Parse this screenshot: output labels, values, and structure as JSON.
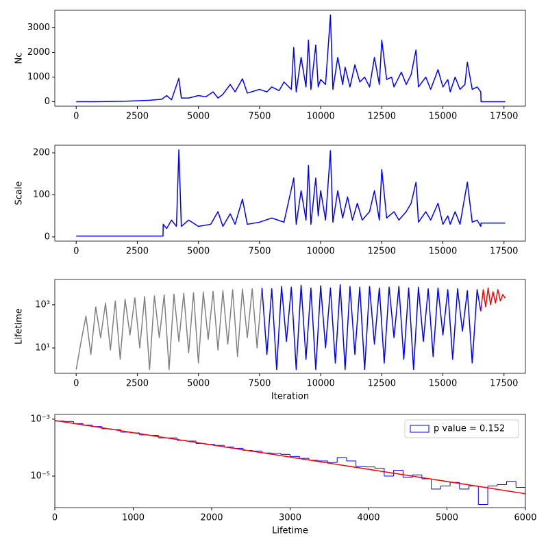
{
  "chart_data": [
    {
      "type": "line",
      "ylabel": "Nc",
      "xlim": [
        -875,
        18375
      ],
      "ylim": [
        -180,
        3710
      ],
      "xticks": [
        0,
        2500,
        5000,
        7500,
        10000,
        12500,
        15000,
        17500
      ],
      "yticks": [
        0,
        1000,
        2000,
        3000
      ],
      "series": [
        {
          "color": "#0000ff",
          "x": [
            0,
            1000,
            2000,
            2500,
            3000,
            3500,
            3700,
            3900,
            4200,
            4300,
            4600,
            5000,
            5300,
            5600,
            5800,
            6000,
            6300,
            6500,
            6800,
            7000,
            7500,
            7800,
            8000,
            8300,
            8500,
            8800,
            8900,
            9000,
            9200,
            9400,
            9500,
            9600,
            9800,
            9900,
            10000,
            10200,
            10400,
            10500,
            10700,
            10900,
            11000,
            11200,
            11400,
            11600,
            11800,
            12000,
            12200,
            12400,
            12500,
            12700,
            12900,
            13000,
            13300,
            13500,
            13700,
            13900,
            14000,
            14300,
            14500,
            14800,
            15000,
            15200,
            15300,
            15500,
            15700,
            15900,
            16000,
            16200,
            16400,
            16550,
            16560,
            17550
          ],
          "values": [
            0,
            5,
            20,
            40,
            60,
            100,
            250,
            80,
            950,
            150,
            150,
            250,
            200,
            400,
            150,
            300,
            700,
            400,
            930,
            350,
            500,
            400,
            600,
            450,
            800,
            500,
            2200,
            400,
            1800,
            600,
            2500,
            500,
            2300,
            600,
            900,
            700,
            3520,
            500,
            1800,
            700,
            1400,
            600,
            1500,
            800,
            1000,
            600,
            1800,
            700,
            2500,
            900,
            1000,
            600,
            1200,
            700,
            1100,
            2100,
            600,
            1000,
            500,
            1300,
            600,
            900,
            400,
            1000,
            500,
            700,
            1600,
            500,
            600,
            400,
            0,
            0
          ]
        }
      ]
    },
    {
      "type": "line",
      "ylabel": "Scale",
      "xlim": [
        -875,
        18375
      ],
      "ylim": [
        -10,
        218
      ],
      "xticks": [
        0,
        2500,
        5000,
        7500,
        10000,
        12500,
        15000,
        17500
      ],
      "yticks": [
        0,
        100,
        200
      ],
      "series": [
        {
          "color": "#0000ff",
          "x": [
            0,
            3550,
            3560,
            3700,
            3900,
            4100,
            4200,
            4300,
            4600,
            5000,
            5500,
            5800,
            6000,
            6300,
            6500,
            6800,
            7000,
            7500,
            8000,
            8500,
            8900,
            9000,
            9200,
            9400,
            9500,
            9600,
            9800,
            9900,
            10000,
            10200,
            10400,
            10500,
            10700,
            10900,
            11100,
            11300,
            11500,
            11700,
            12000,
            12200,
            12400,
            12500,
            12700,
            13000,
            13200,
            13500,
            13700,
            13900,
            14000,
            14300,
            14500,
            14800,
            15000,
            15200,
            15300,
            15500,
            15700,
            16000,
            16200,
            16400,
            16550,
            16560,
            17550
          ],
          "values": [
            2,
            2,
            30,
            20,
            40,
            25,
            207,
            25,
            40,
            25,
            30,
            60,
            25,
            55,
            30,
            90,
            30,
            35,
            45,
            35,
            140,
            30,
            110,
            40,
            170,
            30,
            140,
            50,
            110,
            40,
            205,
            35,
            110,
            45,
            95,
            40,
            80,
            40,
            60,
            110,
            40,
            160,
            45,
            60,
            40,
            60,
            80,
            130,
            35,
            60,
            40,
            80,
            30,
            50,
            30,
            60,
            30,
            130,
            35,
            40,
            25,
            33,
            33
          ]
        }
      ]
    },
    {
      "type": "line",
      "ylabel": "Lifetime",
      "xlabel": "Iteration",
      "log_y": true,
      "xlim": [
        -875,
        18375
      ],
      "ylim": [
        0.67,
        14800
      ],
      "xticks": [
        0,
        2500,
        5000,
        7500,
        10000,
        12500,
        15000,
        17500
      ],
      "yticks": [
        {
          "value": 10,
          "label": "10¹"
        },
        {
          "value": 1000,
          "label": "10³"
        }
      ],
      "series": [
        {
          "color": "#808080",
          "x": [
            0,
            200,
            400,
            600,
            800,
            1000,
            1200,
            1400,
            1600,
            1800,
            2000,
            2200,
            2400,
            2600,
            2800,
            3000,
            3200,
            3400,
            3600,
            3800,
            4000,
            4200,
            4400,
            4600,
            4800,
            5000,
            5200,
            5400,
            5600,
            5800,
            6000,
            6200,
            6400,
            6600,
            6800,
            7000,
            7200,
            7400,
            7600
          ],
          "values": [
            1,
            20,
            300,
            5,
            800,
            30,
            1200,
            8,
            1500,
            3,
            1800,
            40,
            2100,
            10,
            2400,
            1,
            2600,
            30,
            2900,
            1,
            3100,
            20,
            3400,
            6,
            3600,
            2,
            3900,
            25,
            4200,
            8,
            4500,
            15,
            4900,
            4,
            5300,
            30,
            5600,
            10,
            6000
          ]
        },
        {
          "color": "#0000ff",
          "x": [
            7600,
            7800,
            8000,
            8200,
            8400,
            8600,
            8800,
            9000,
            9200,
            9400,
            9600,
            9800,
            10000,
            10200,
            10400,
            10600,
            10800,
            11000,
            11200,
            11400,
            11600,
            11800,
            12000,
            12200,
            12400,
            12600,
            12800,
            13000,
            13200,
            13400,
            13600,
            13800,
            14000,
            14200,
            14400,
            14600,
            14800,
            15000,
            15200,
            15400,
            15600,
            15800,
            16000,
            16200,
            16400,
            16550
          ],
          "values": [
            6000,
            5,
            5500,
            1,
            7000,
            20,
            6500,
            1,
            8000,
            3,
            6000,
            1,
            7500,
            10,
            6000,
            2,
            8500,
            1,
            7000,
            5,
            6500,
            1,
            7000,
            15,
            6000,
            2,
            6500,
            30,
            7000,
            3,
            6000,
            1,
            6500,
            20,
            5500,
            4,
            6000,
            40,
            5000,
            3,
            5500,
            60,
            4500,
            2,
            5000,
            500
          ]
        },
        {
          "color": "#ff0000",
          "x": [
            16550,
            16650,
            16750,
            16850,
            16950,
            17050,
            17150,
            17250,
            17350,
            17450,
            17550
          ],
          "values": [
            500,
            5000,
            800,
            6000,
            1000,
            4000,
            1200,
            5000,
            1500,
            3000,
            2000
          ]
        }
      ]
    },
    {
      "type": "histogram",
      "xlabel": "Lifetime",
      "log_y": true,
      "xlim": [
        0,
        6000
      ],
      "ylim": [
        7.8e-07,
        0.00147
      ],
      "xticks": [
        0,
        1000,
        2000,
        3000,
        4000,
        5000,
        6000
      ],
      "yticks": [
        {
          "value": 0.001,
          "label": "10⁻³"
        },
        {
          "value": 1e-05,
          "label": "10⁻⁵"
        }
      ],
      "name": "p value = 0.152",
      "color": "#0000ff",
      "legend": "upper right",
      "bins": [
        0,
        120,
        240,
        360,
        480,
        600,
        720,
        840,
        960,
        1080,
        1200,
        1320,
        1440,
        1560,
        1680,
        1800,
        1920,
        2040,
        2160,
        2280,
        2400,
        2520,
        2640,
        2760,
        2880,
        3000,
        3120,
        3240,
        3360,
        3480,
        3600,
        3720,
        3840,
        3960,
        4080,
        4200,
        4320,
        4440,
        4560,
        4680,
        4800,
        4920,
        5040,
        5160,
        5280,
        5400,
        5520,
        5640,
        5760,
        5880,
        6000
      ],
      "values": [
        0.00086,
        0.00083,
        0.0007,
        0.00062,
        0.00055,
        0.00046,
        0.00043,
        0.00035,
        0.00033,
        0.00028,
        0.00027,
        0.00022,
        0.00022,
        0.00018,
        0.00017,
        0.00014,
        0.00013,
        0.00012,
        0.000105,
        9.5e-05,
        8e-05,
        7.6e-05,
        6.5e-05,
        6.3e-05,
        5.8e-05,
        4.9e-05,
        4.2e-05,
        3.6e-05,
        3.4e-05,
        3e-05,
        4.5e-05,
        3.4e-05,
        2.2e-05,
        2.1e-05,
        1.9e-05,
        1e-05,
        1.6e-05,
        9e-06,
        1.1e-05,
        8e-06,
        3.5e-06,
        4.5e-06,
        6e-06,
        3.5e-06,
        4.5e-06,
        1e-06,
        4.5e-06,
        5e-06,
        6.5e-06,
        4e-06
      ],
      "fit": {
        "color": "#ff0000",
        "x": [
          0,
          6000
        ],
        "values": [
          0.0009,
          2.4e-06
        ]
      }
    }
  ]
}
